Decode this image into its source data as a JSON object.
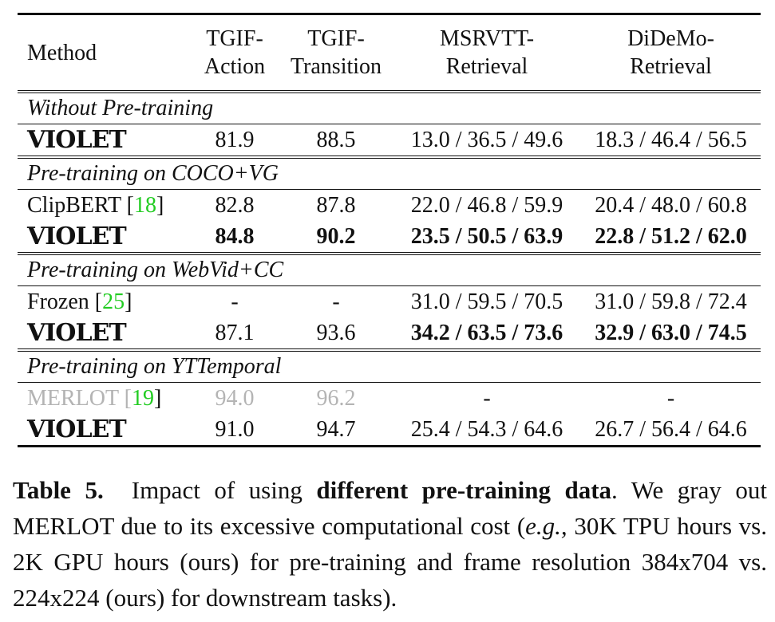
{
  "table": {
    "headers": {
      "method": "Method",
      "tgif_action": [
        "TGIF-",
        "Action"
      ],
      "tgif_transition": [
        "TGIF-",
        "Transition"
      ],
      "msrvtt": [
        "MSRVTT-",
        "Retrieval"
      ],
      "didemo": [
        "DiDeMo-",
        "Retrieval"
      ]
    },
    "groups": [
      {
        "title": "Without Pre-training",
        "rows": [
          {
            "method": "VIOLET",
            "cite": "",
            "tgif_action": "81.9",
            "tgif_transition": "88.5",
            "msrvtt": "13.0 / 36.5 / 49.6",
            "didemo": "18.3 / 46.4 / 56.5"
          }
        ]
      },
      {
        "title": "Pre-training on COCO+VG",
        "rows": [
          {
            "method": "ClipBERT",
            "cite": "18",
            "tgif_action": "82.8",
            "tgif_transition": "87.8",
            "msrvtt": "22.0 / 46.8 / 59.9",
            "didemo": "20.4 / 48.0 / 60.8"
          },
          {
            "method": "VIOLET",
            "cite": "",
            "tgif_action": "84.8",
            "tgif_transition": "90.2",
            "msrvtt": "23.5 / 50.5 / 63.9",
            "didemo": "22.8 / 51.2 / 62.0"
          }
        ]
      },
      {
        "title": "Pre-training on WebVid+CC",
        "rows": [
          {
            "method": "Frozen",
            "cite": "25",
            "tgif_action": "-",
            "tgif_transition": "-",
            "msrvtt": "31.0 / 59.5 / 70.5",
            "didemo": "31.0 / 59.8 / 72.4"
          },
          {
            "method": "VIOLET",
            "cite": "",
            "tgif_action": "87.1",
            "tgif_transition": "93.6",
            "msrvtt": "34.2 / 63.5 / 73.6",
            "didemo": "32.9 / 63.0 / 74.5"
          }
        ]
      },
      {
        "title": "Pre-training on YTTemporal",
        "rows": [
          {
            "method": "MERLOT",
            "cite": "19",
            "tgif_action": "94.0",
            "tgif_transition": "96.2",
            "msrvtt": "-",
            "didemo": "-"
          },
          {
            "method": "VIOLET",
            "cite": "",
            "tgif_action": "91.0",
            "tgif_transition": "94.7",
            "msrvtt": "25.4 / 54.3 / 64.6",
            "didemo": "26.7 / 56.4 / 64.6"
          }
        ]
      }
    ]
  },
  "caption": {
    "label": "Table 5.",
    "text_1": "Impact of using",
    "emph": "different pre-training data",
    "text_2": ". We gray out MERLOT due to its excessive computational cost (",
    "eg": "e.g.,",
    "text_3": " 30K TPU hours vs. 2K GPU hours (ours) for pre-training and frame resolution 384x704 vs. 224x224 (ours) for downstream tasks)."
  },
  "colors": {
    "text": "#111111",
    "citation": "#22cc22",
    "grayed": "#b4b4b4"
  }
}
